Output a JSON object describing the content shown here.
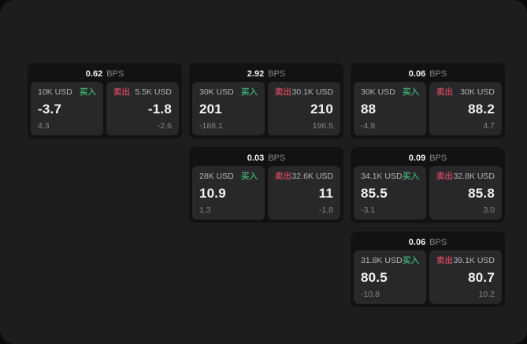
{
  "page": {
    "bps_suffix": "BPS",
    "buy_label": "买入",
    "sell_label": "卖出",
    "colors": {
      "outer_bg": "#0a0a0a",
      "canvas_bg": "#1d1d1f",
      "card_bg": "#121214",
      "panel_bg": "#28282a",
      "text_primary": "#f2f2f4",
      "text_secondary": "#b3b3b8",
      "text_muted": "#85858a",
      "buy_green": "#3ea56c",
      "sell_red": "#bf4458"
    }
  },
  "cards": [
    {
      "col": 1,
      "row": 1,
      "bps": "0.62",
      "buy": {
        "amount": "10K USD",
        "price": "-3.7",
        "delta": "4.3"
      },
      "sell": {
        "amount": "5.5K USD",
        "price": "-1.8",
        "delta": "-2.6"
      }
    },
    {
      "col": 2,
      "row": 1,
      "bps": "2.92",
      "buy": {
        "amount": "30K USD",
        "price": "201",
        "delta": "-188.1"
      },
      "sell": {
        "amount": "30.1K USD",
        "price": "210",
        "delta": "196.5"
      }
    },
    {
      "col": 3,
      "row": 1,
      "bps": "0.06",
      "buy": {
        "amount": "30K USD",
        "price": "88",
        "delta": "-4.9"
      },
      "sell": {
        "amount": "30K USD",
        "price": "88.2",
        "delta": "4.7"
      }
    },
    {
      "col": 2,
      "row": 2,
      "bps": "0.03",
      "buy": {
        "amount": "28K USD",
        "price": "10.9",
        "delta": "1.3"
      },
      "sell": {
        "amount": "32.6K USD",
        "price": "11",
        "delta": "-1.8"
      }
    },
    {
      "col": 3,
      "row": 2,
      "bps": "0.09",
      "buy": {
        "amount": "34.1K USD",
        "price": "85.5",
        "delta": "-3.1"
      },
      "sell": {
        "amount": "32.8K USD",
        "price": "85.8",
        "delta": "3.0"
      }
    },
    {
      "col": 3,
      "row": 3,
      "bps": "0.06",
      "buy": {
        "amount": "31.8K USD",
        "price": "80.5",
        "delta": "-10.8"
      },
      "sell": {
        "amount": "39.1K USD",
        "price": "80.7",
        "delta": "10.2"
      }
    }
  ]
}
